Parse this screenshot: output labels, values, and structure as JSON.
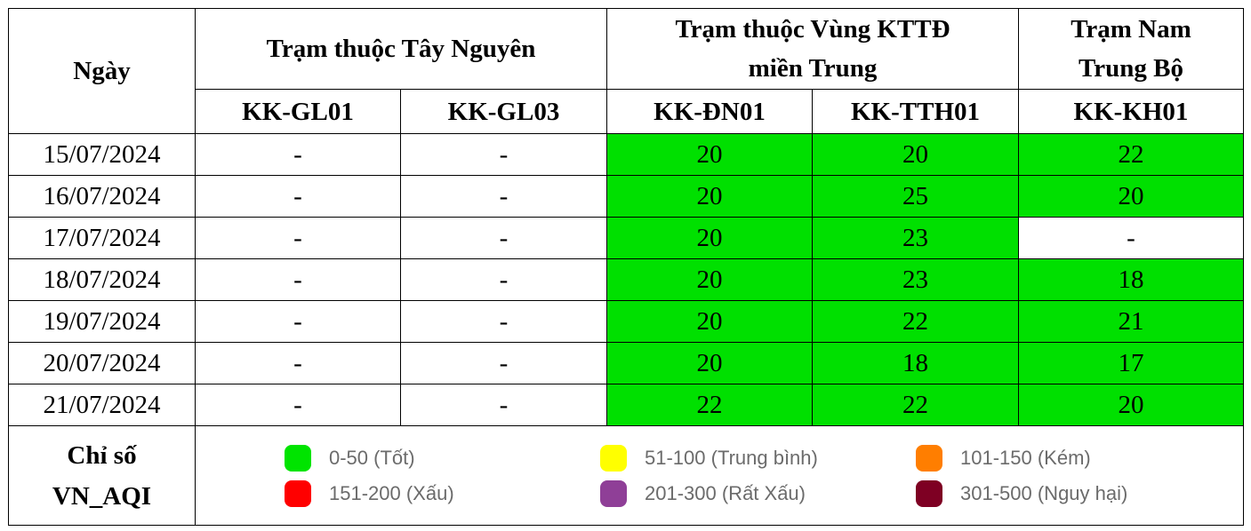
{
  "header": {
    "day_label": "Ngày",
    "group_tay_nguyen": "Trạm thuộc Tây Nguyên",
    "group_kttd_line1": "Trạm thuộc Vùng KTTĐ",
    "group_kttd_line2": "miền Trung",
    "group_nam_line1": "Trạm Nam",
    "group_nam_line2": "Trung Bộ",
    "stations": [
      "KK-GL01",
      "KK-GL03",
      "KK-ĐN01",
      "KK-TTH01",
      "KK-KH01"
    ]
  },
  "rows": [
    {
      "date": "15/07/2024",
      "values": [
        "-",
        "-",
        "20",
        "20",
        "22"
      ]
    },
    {
      "date": "16/07/2024",
      "values": [
        "-",
        "-",
        "20",
        "25",
        "20"
      ]
    },
    {
      "date": "17/07/2024",
      "values": [
        "-",
        "-",
        "20",
        "23",
        "-"
      ]
    },
    {
      "date": "18/07/2024",
      "values": [
        "-",
        "-",
        "20",
        "23",
        "18"
      ]
    },
    {
      "date": "19/07/2024",
      "values": [
        "-",
        "-",
        "20",
        "22",
        "21"
      ]
    },
    {
      "date": "20/07/2024",
      "values": [
        "-",
        "-",
        "20",
        "18",
        "17"
      ]
    },
    {
      "date": "21/07/2024",
      "values": [
        "-",
        "-",
        "22",
        "22",
        "20"
      ]
    }
  ],
  "legend": {
    "label_line1": "Chỉ số",
    "label_line2": "VN_AQI",
    "items": [
      {
        "range": "0-50 (Tốt)",
        "color": "#00e400"
      },
      {
        "range": "51-100 (Trung bình)",
        "color": "#ffff00"
      },
      {
        "range": "101-150 (Kém)",
        "color": "#ff7e00"
      },
      {
        "range": "151-200 (Xấu)",
        "color": "#ff0000"
      },
      {
        "range": "201-300 (Rất Xấu)",
        "color": "#8f3f97"
      },
      {
        "range": "301-500 (Nguy hại)",
        "color": "#7e0023"
      }
    ]
  },
  "good_color": "#00e000"
}
